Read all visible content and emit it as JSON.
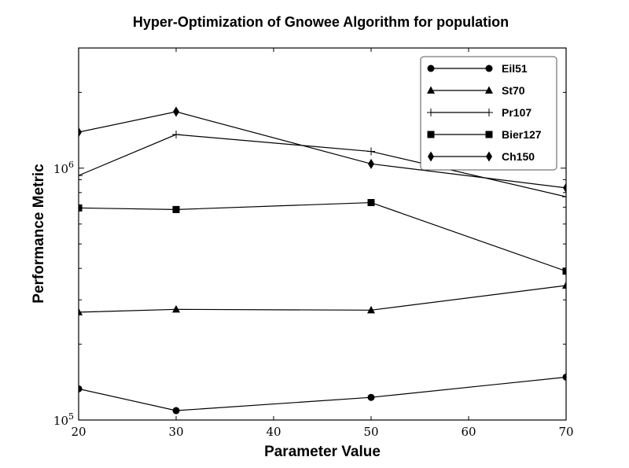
{
  "chart_data": {
    "type": "line",
    "title": "Hyper-Optimization of Gnowee Algorithm for population",
    "xlabel": "Parameter Value",
    "ylabel": "Performance Metric",
    "x": [
      20,
      30,
      50,
      70
    ],
    "xlim": [
      20,
      70
    ],
    "x_ticks": [
      20,
      30,
      40,
      50,
      60,
      70
    ],
    "y_scale": "log",
    "ylim": [
      100000,
      3000000
    ],
    "y_tick_labels": [
      "10^5",
      "10^6"
    ],
    "grid": false,
    "legend_position": "top-right",
    "series": [
      {
        "name": "Eil51",
        "marker": "circle",
        "values": [
          133000,
          109000,
          123000,
          148000
        ]
      },
      {
        "name": "St70",
        "marker": "triangle",
        "values": [
          268000,
          275000,
          273000,
          342000
        ]
      },
      {
        "name": "Pr107",
        "marker": "plus",
        "values": [
          935000,
          1360000,
          1165000,
          770000
        ]
      },
      {
        "name": "Bier127",
        "marker": "square",
        "values": [
          695000,
          685000,
          730000,
          390000
        ]
      },
      {
        "name": "Ch150",
        "marker": "diamond",
        "values": [
          1390000,
          1675000,
          1040000,
          835000
        ]
      }
    ]
  }
}
